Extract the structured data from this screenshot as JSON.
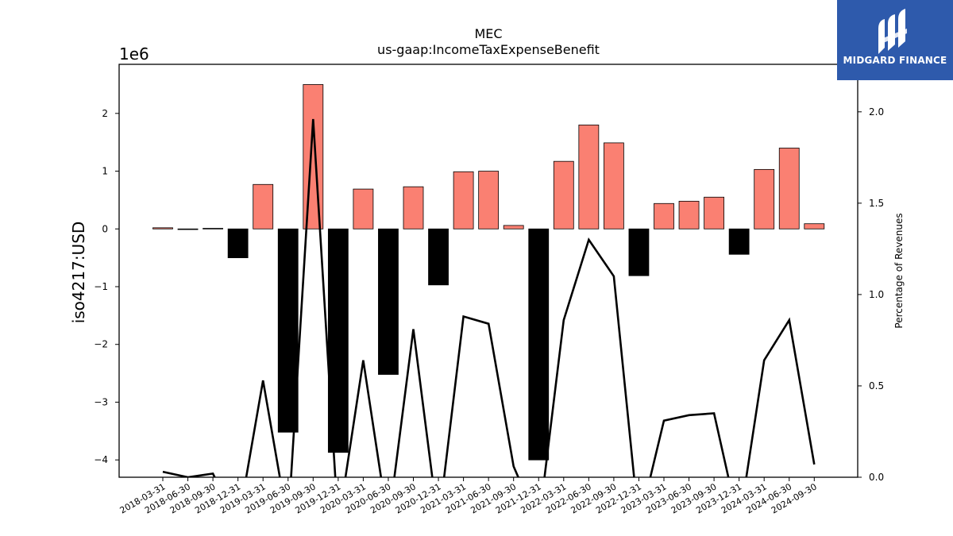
{
  "brand": {
    "name": "MIDGARD FINANCE",
    "color": "#2e5aac",
    "logo_icon": "midgard-logo-icon"
  },
  "chart_data": {
    "type": "bar",
    "title": "MEC",
    "subtitle": "us-gaap:IncomeTaxExpenseBenefit",
    "ylabel": "iso4217:USD",
    "y_offset_label": "1e6",
    "y2label": "Percentage of Revenues",
    "ylim": [
      -4.3,
      2.85
    ],
    "y2lim": [
      0,
      2.26
    ],
    "yticks": [
      2,
      1,
      0,
      -1,
      -2,
      -3,
      -4
    ],
    "y2ticks": [
      0.0,
      0.5,
      1.0,
      1.5,
      2.0
    ],
    "colors": {
      "positive": "#fa8072",
      "negative": "#000000",
      "line": "#000000"
    },
    "categories": [
      "2018-03-31",
      "2018-06-30",
      "2018-09-30",
      "2018-12-31",
      "2019-03-31",
      "2019-06-30",
      "2019-09-30",
      "2019-12-31",
      "2020-03-31",
      "2020-06-30",
      "2020-09-30",
      "2020-12-31",
      "2021-03-31",
      "2021-06-30",
      "2021-09-30",
      "2021-12-31",
      "2022-03-31",
      "2022-06-30",
      "2022-09-30",
      "2022-12-31",
      "2023-03-31",
      "2023-06-30",
      "2023-09-30",
      "2023-12-31",
      "2024-03-31",
      "2024-06-30",
      "2024-09-30"
    ],
    "series": [
      {
        "values": [
          0.02,
          -0.01,
          0.01,
          -0.5,
          0.77,
          -3.52,
          2.5,
          -3.87,
          0.69,
          -2.52,
          0.73,
          -0.97,
          0.99,
          1.0,
          0.06,
          -4.0,
          1.17,
          1.8,
          1.49,
          -0.81,
          0.44,
          0.48,
          0.55,
          -0.44,
          1.03,
          1.4,
          0.09
        ]
      },
      {
        "values": [
          0.03,
          0.0,
          0.02,
          null,
          0.53,
          null,
          1.96,
          null,
          0.64,
          null,
          0.81,
          null,
          0.88,
          0.84,
          0.06,
          null,
          0.86,
          1.3,
          1.1,
          null,
          0.31,
          0.34,
          0.35,
          null,
          0.64,
          0.86,
          0.07
        ]
      }
    ]
  }
}
